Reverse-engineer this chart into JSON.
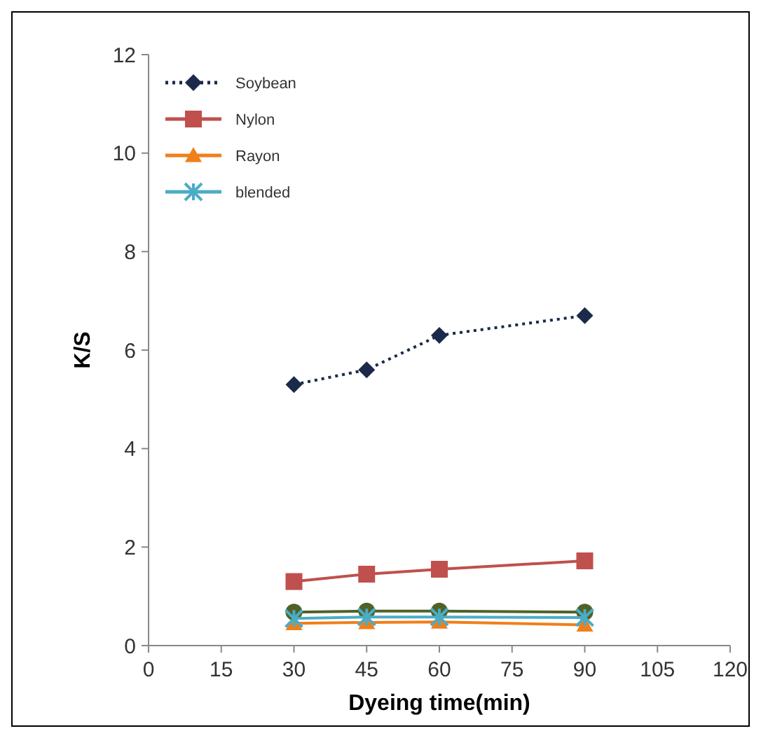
{
  "chart_data": {
    "type": "line",
    "xlabel": "Dyeing time(min)",
    "ylabel": "K/S",
    "x": [
      30,
      45,
      60,
      90
    ],
    "xlim": [
      0,
      120
    ],
    "xticks": [
      0,
      15,
      30,
      45,
      60,
      75,
      90,
      105,
      120
    ],
    "ylim": [
      0,
      12
    ],
    "yticks": [
      0,
      2,
      4,
      6,
      8,
      10,
      12
    ],
    "grid": false,
    "legend": "top left",
    "series": [
      {
        "name": "Soybean",
        "color": "#1b2a4a",
        "marker": "diamond",
        "line_style": "dotted",
        "values": [
          5.3,
          5.6,
          6.3,
          6.7
        ]
      },
      {
        "name": "Nylon",
        "color": "#c0504d",
        "marker": "square",
        "line_style": "solid",
        "values": [
          1.3,
          1.45,
          1.55,
          1.72
        ]
      },
      {
        "name": "Rayon",
        "color": "#f07f1a",
        "marker": "triangle",
        "line_style": "solid",
        "values": [
          0.45,
          0.47,
          0.48,
          0.42
        ]
      },
      {
        "color": "#4f6228",
        "marker": "circle",
        "line_style": "solid",
        "values": [
          0.68,
          0.7,
          0.7,
          0.68
        ]
      },
      {
        "name": "blended",
        "color": "#4bacc6",
        "marker": "cross",
        "line_style": "solid",
        "values": [
          0.55,
          0.58,
          0.58,
          0.57
        ]
      }
    ]
  }
}
